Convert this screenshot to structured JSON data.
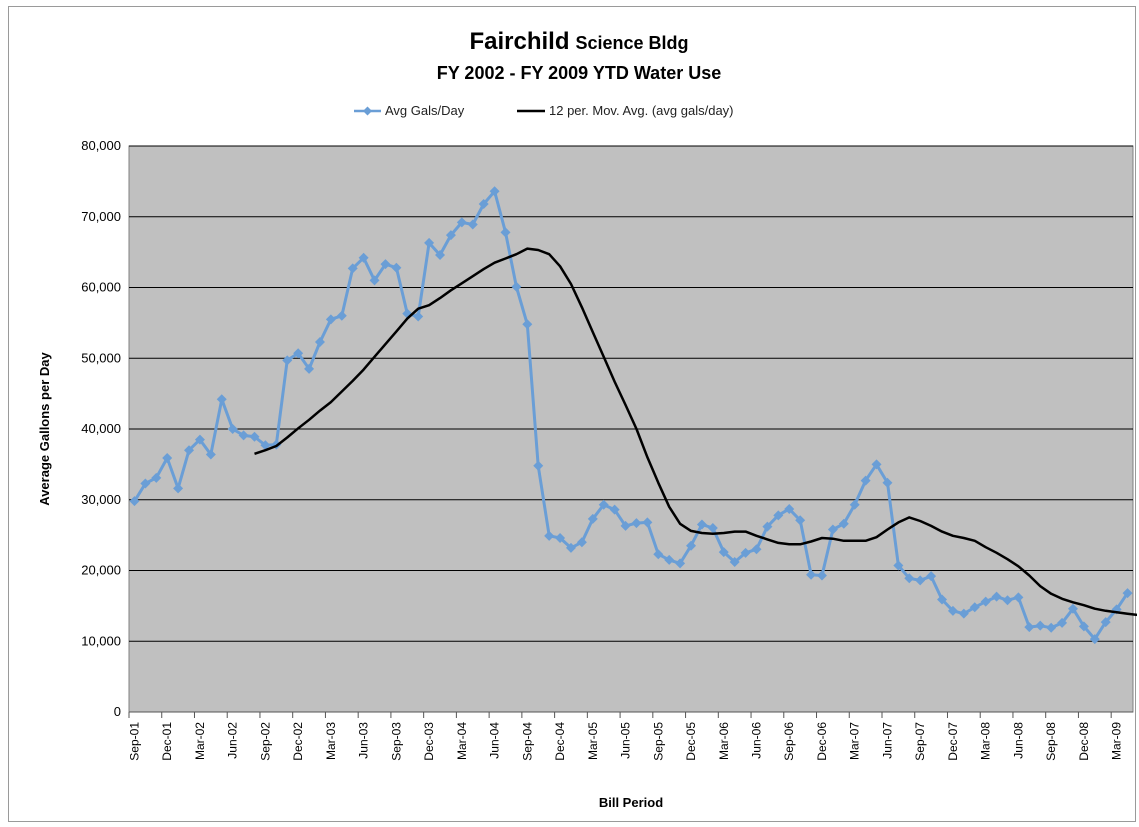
{
  "chart_data": {
    "type": "line",
    "title_main": "Fairchild",
    "title_main_suffix": "Science Bldg",
    "subtitle": "FY 2002 - FY 2009 YTD Water Use",
    "xlabel": "Bill Period",
    "ylabel": "Average Gallons per Day",
    "ylim": [
      0,
      80000
    ],
    "yticks": [
      "0",
      "10,000",
      "20,000",
      "30,000",
      "40,000",
      "50,000",
      "60,000",
      "70,000",
      "80,000"
    ],
    "grid": "horizontal",
    "legend_position": "top-center",
    "x_tick_labels": [
      "Sep-01",
      "Dec-01",
      "Mar-02",
      "Jun-02",
      "Sep-02",
      "Dec-02",
      "Mar-03",
      "Jun-03",
      "Sep-03",
      "Dec-03",
      "Mar-04",
      "Jun-04",
      "Sep-04",
      "Dec-04",
      "Mar-05",
      "Jun-05",
      "Sep-05",
      "Dec-05",
      "Mar-06",
      "Jun-06",
      "Sep-06",
      "Dec-06",
      "Mar-07",
      "Jun-07",
      "Sep-07",
      "Dec-07",
      "Mar-08",
      "Jun-08",
      "Sep-08",
      "Dec-08",
      "Mar-09"
    ],
    "series": [
      {
        "name": "Avg Gals/Day",
        "color": "#6a9ed6",
        "marker": "diamond",
        "values": [
          29800,
          32300,
          33100,
          35900,
          31600,
          37000,
          38500,
          36400,
          44200,
          40000,
          39100,
          38900,
          37700,
          37800,
          49700,
          50700,
          48500,
          52300,
          55500,
          56000,
          62700,
          64200,
          61000,
          63300,
          62800,
          56300,
          55900,
          66300,
          64600,
          67400,
          69200,
          68900,
          71800,
          73600,
          67800,
          60100,
          54800,
          34800,
          24900,
          24600,
          23200,
          24000,
          27300,
          29300,
          28600,
          26300,
          26700,
          26800,
          22300,
          21500,
          21000,
          23500,
          26500,
          26000,
          22600,
          21200,
          22500,
          23000,
          26200,
          27800,
          28700,
          27100,
          19400,
          19300,
          25800,
          26600,
          29300,
          32700,
          35000,
          32400,
          20700,
          18900,
          18600,
          19200,
          15900,
          14300,
          13900,
          14800,
          15600,
          16300,
          15800,
          16200,
          12000,
          12200,
          11900,
          12600,
          14600,
          12100,
          10300,
          12700,
          14500,
          16800
        ]
      },
      {
        "name": "12 per. Mov. Avg. (avg gals/day)",
        "color": "#000000",
        "start_index": 11,
        "values": [
          36500,
          37000,
          37600,
          38800,
          40100,
          41300,
          42600,
          43800,
          45300,
          46800,
          48400,
          50200,
          52000,
          53800,
          55600,
          57000,
          57500,
          58500,
          59600,
          60600,
          61600,
          62600,
          63500,
          64100,
          64700,
          65500,
          65300,
          64700,
          63000,
          60500,
          57200,
          53700,
          50200,
          46700,
          43400,
          40000,
          36000,
          32400,
          29000,
          26600,
          25600,
          25300,
          25200,
          25300,
          25500,
          25500,
          24900,
          24400,
          23900,
          23700,
          23700,
          24100,
          24600,
          24500,
          24200,
          24200,
          24200,
          24700,
          25800,
          26800,
          27500,
          27000,
          26300,
          25500,
          24900,
          24600,
          24200,
          23300,
          22500,
          21600,
          20600,
          19300,
          17800,
          16700,
          16000,
          15500,
          15100,
          14600,
          14300,
          14100,
          13900,
          13700,
          13600,
          13500,
          13500
        ]
      }
    ]
  }
}
